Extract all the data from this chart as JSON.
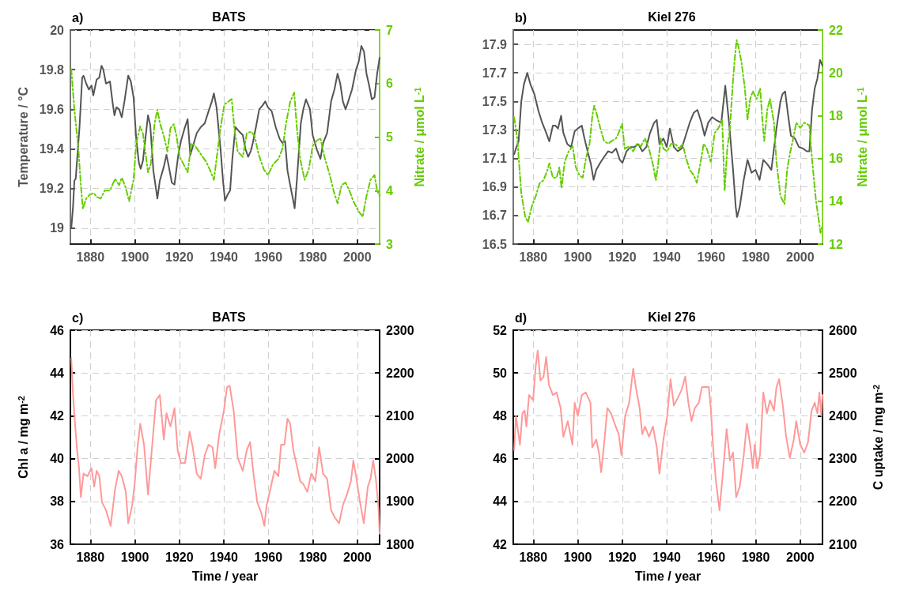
{
  "chart_data": [
    {
      "type": "line",
      "title": "BATS",
      "annotations": [
        "a)"
      ],
      "ylabel": "Temperature / °C",
      "y2label": "Nitrate / μmol L$^{-1}$",
      "xlim": [
        1871,
        2010
      ],
      "xticks": [
        1880,
        1900,
        1920,
        1940,
        1960,
        1980,
        2000
      ],
      "ylim": [
        18.92,
        20
      ],
      "yticks": [
        19,
        19.2,
        19.4,
        19.6,
        19.8,
        20
      ],
      "y2lim": [
        3,
        7
      ],
      "y2ticks": [
        3,
        4,
        5,
        6,
        7
      ],
      "grid": true,
      "series": [
        {
          "color": "#555555",
          "line_style": "solid",
          "x": [
            1871.4,
            1872.2,
            1872.8,
            1873.4,
            1875.1,
            1876.3,
            1876.9,
            1878.1,
            1879.3,
            1880.5,
            1881.3,
            1882.8,
            1884,
            1885,
            1885.8,
            1887,
            1888.8,
            1889.9,
            1890.8,
            1891.7,
            1892.9,
            1894.1,
            1895.3,
            1897,
            1898.2,
            1899.4,
            1900.6,
            1901.8,
            1902.6,
            1903.6,
            1904.7,
            1905.9,
            1906.9,
            1908.3,
            1910.1,
            1911.2,
            1913,
            1914.2,
            1915.1,
            1916.6,
            1917.8,
            1919.5,
            1920.7,
            1922.5,
            1923.7,
            1924.9,
            1926,
            1927.8,
            1929.6,
            1931.4,
            1933.1,
            1934.6,
            1935.5,
            1936.7,
            1938.5,
            1939.6,
            1940.5,
            1941.7,
            1942.8,
            1943.8,
            1945.2,
            1946.7,
            1948.5,
            1949.7,
            1950.9,
            1952.1,
            1953,
            1954.4,
            1955.9,
            1957.4,
            1958.6,
            1959.8,
            1961.5,
            1963.3,
            1965.1,
            1966.3,
            1967.5,
            1968.6,
            1970.1,
            1971,
            1971.8,
            1972.8,
            1974.6,
            1975.7,
            1976.9,
            1978.7,
            1979.9,
            1981.7,
            1983.4,
            1984.6,
            1986.4,
            1988.2,
            1989.7,
            1991.1,
            1992.3,
            1993.5,
            1994.7,
            1995.9,
            1997.6,
            1999.4,
            2000.6,
            2001.8,
            2003,
            2004.1,
            2005.3,
            2006.5,
            2007.7,
            2008.9,
            2010
          ],
          "values": [
            19.0,
            19.11,
            19.24,
            19.25,
            19.51,
            19.76,
            19.77,
            19.73,
            19.7,
            19.72,
            19.67,
            19.75,
            19.76,
            19.82,
            19.8,
            19.73,
            19.74,
            19.64,
            19.57,
            19.61,
            19.6,
            19.56,
            19.64,
            19.77,
            19.74,
            19.66,
            19.45,
            19.33,
            19.3,
            19.34,
            19.45,
            19.57,
            19.52,
            19.29,
            19.15,
            19.24,
            19.31,
            19.37,
            19.32,
            19.23,
            19.22,
            19.37,
            19.44,
            19.51,
            19.55,
            19.37,
            19.41,
            19.48,
            19.51,
            19.53,
            19.59,
            19.64,
            19.68,
            19.61,
            19.4,
            19.24,
            19.14,
            19.17,
            19.19,
            19.35,
            19.51,
            19.49,
            19.47,
            19.4,
            19.36,
            19.39,
            19.43,
            19.51,
            19.6,
            19.62,
            19.64,
            19.61,
            19.59,
            19.51,
            19.45,
            19.43,
            19.44,
            19.29,
            19.2,
            19.15,
            19.1,
            19.24,
            19.53,
            19.6,
            19.65,
            19.6,
            19.47,
            19.4,
            19.35,
            19.43,
            19.48,
            19.64,
            19.7,
            19.78,
            19.73,
            19.64,
            19.6,
            19.64,
            19.7,
            19.8,
            19.84,
            19.92,
            19.89,
            19.78,
            19.72,
            19.65,
            19.66,
            19.78,
            19.86
          ]
        },
        {
          "color": "#66cc00",
          "line_style": "dashed",
          "axis": "y2",
          "x": [
            1871.4,
            1872.8,
            1874.6,
            1875.7,
            1876.6,
            1878.1,
            1879.9,
            1881.7,
            1882.8,
            1884.6,
            1886.4,
            1888.8,
            1891.1,
            1892.9,
            1894.1,
            1895.9,
            1897.4,
            1899.4,
            1900.6,
            1902.4,
            1903.6,
            1904.7,
            1905.9,
            1907.1,
            1908.9,
            1910.1,
            1911.2,
            1913,
            1914.6,
            1916,
            1917.5,
            1918.7,
            1920.1,
            1921.9,
            1923.7,
            1925.4,
            1927.2,
            1929.6,
            1932,
            1933.7,
            1935.5,
            1936.7,
            1938.5,
            1940.2,
            1942,
            1943.5,
            1944.7,
            1946.2,
            1948.5,
            1950.3,
            1952.3,
            1953.8,
            1955.6,
            1958,
            1959.8,
            1962.1,
            1964.5,
            1966.3,
            1968,
            1969.8,
            1971.6,
            1972.8,
            1974.3,
            1976.3,
            1978.1,
            1979.9,
            1981.7,
            1983.4,
            1985.2,
            1987.6,
            1989.3,
            1991.1,
            1992.9,
            1994.7,
            1996.4,
            1998.2,
            2000.6,
            2002.4,
            2004.1,
            2005.9,
            2007.7,
            2008.9,
            2010
          ],
          "values": [
            6.27,
            5.51,
            4.78,
            4.1,
            3.66,
            3.85,
            3.93,
            3.95,
            3.88,
            3.85,
            4.0,
            4.0,
            4.22,
            4.1,
            4.24,
            4.05,
            3.8,
            4.2,
            4.88,
            5.2,
            5.07,
            4.73,
            4.34,
            4.49,
            5.27,
            5.51,
            5.27,
            5.02,
            4.73,
            5.17,
            5.24,
            5.02,
            4.63,
            4.49,
            4.34,
            4.88,
            4.83,
            4.68,
            4.54,
            4.39,
            4.2,
            4.59,
            5.17,
            5.61,
            5.66,
            5.71,
            5.17,
            4.73,
            4.63,
            5.07,
            5.1,
            5.02,
            4.68,
            4.39,
            4.29,
            4.49,
            4.59,
            4.78,
            5.27,
            5.66,
            5.83,
            5.17,
            4.59,
            4.2,
            4.39,
            4.83,
            4.93,
            4.98,
            4.63,
            4.29,
            4.0,
            3.76,
            4.1,
            4.15,
            4.0,
            3.8,
            3.61,
            3.51,
            3.9,
            4.2,
            4.29,
            4.0,
            3.9
          ]
        }
      ]
    },
    {
      "type": "line",
      "title": "Kiel 276",
      "annotations": [
        "b)"
      ],
      "y2label": "Nitrate / μmol L$^{-1}$",
      "xlim": [
        1871,
        2010
      ],
      "xticks": [
        1880,
        1900,
        1920,
        1940,
        1960,
        1980,
        2000
      ],
      "ylim": [
        16.5,
        18.0
      ],
      "yticks": [
        16.5,
        16.7,
        16.9,
        17.1,
        17.3,
        17.5,
        17.7,
        17.9
      ],
      "y2lim": [
        12,
        22
      ],
      "y2ticks": [
        12,
        14,
        16,
        18,
        20,
        22
      ],
      "grid": true,
      "series": [
        {
          "color": "#555555",
          "line_style": "solid",
          "x": [
            1871.4,
            1872.2,
            1873.4,
            1874.6,
            1875.8,
            1877.3,
            1878.7,
            1880.5,
            1882.2,
            1884,
            1885.8,
            1887.2,
            1888.8,
            1889.9,
            1891.1,
            1892.5,
            1893.5,
            1895.3,
            1897,
            1898.6,
            1900,
            1901.8,
            1903,
            1904.1,
            1905.9,
            1907.1,
            1908.3,
            1910.1,
            1911.8,
            1913.6,
            1915.4,
            1917.2,
            1918.9,
            1920.1,
            1921.9,
            1923.7,
            1925.4,
            1927.2,
            1929,
            1930.8,
            1932.5,
            1934.3,
            1935.5,
            1936.7,
            1938.5,
            1940,
            1941.4,
            1943.2,
            1945,
            1946.7,
            1948.5,
            1950.3,
            1952.1,
            1953.8,
            1955.6,
            1957,
            1958.6,
            1960.4,
            1962.1,
            1964.5,
            1966.3,
            1968,
            1969.8,
            1971,
            1971.6,
            1972.8,
            1974.6,
            1976.3,
            1978.1,
            1979.9,
            1981.7,
            1983.4,
            1985.2,
            1987,
            1988.2,
            1989.3,
            1991.1,
            1992,
            1993.2,
            1994.4,
            1995.8,
            1997.6,
            1999.4,
            2001.2,
            2002.9,
            2004.1,
            2005.3,
            2006.5,
            2007.7,
            2008.9,
            2010
          ],
          "values": [
            17.13,
            17.17,
            17.22,
            17.5,
            17.62,
            17.7,
            17.62,
            17.55,
            17.44,
            17.35,
            17.28,
            17.22,
            17.33,
            17.33,
            17.31,
            17.4,
            17.28,
            17.2,
            17.18,
            17.29,
            17.31,
            17.33,
            17.24,
            17.17,
            17.06,
            16.95,
            17.02,
            17.07,
            17.11,
            17.15,
            17.14,
            17.17,
            17.09,
            17.07,
            17.15,
            17.18,
            17.18,
            17.2,
            17.15,
            17.18,
            17.28,
            17.35,
            17.37,
            17.2,
            17.24,
            17.18,
            17.31,
            17.18,
            17.15,
            17.17,
            17.26,
            17.35,
            17.42,
            17.44,
            17.35,
            17.26,
            17.35,
            17.39,
            17.37,
            17.35,
            17.61,
            17.35,
            17.02,
            16.76,
            16.69,
            16.76,
            16.95,
            17.09,
            17.0,
            17.02,
            16.95,
            17.09,
            17.06,
            17.02,
            17.17,
            17.31,
            17.5,
            17.55,
            17.57,
            17.42,
            17.26,
            17.24,
            17.18,
            17.17,
            17.15,
            17.15,
            17.44,
            17.59,
            17.66,
            17.79,
            17.75
          ]
        },
        {
          "color": "#66cc00",
          "line_style": "dashed",
          "axis": "y2",
          "x": [
            1871.4,
            1872.8,
            1874.6,
            1876.4,
            1877.6,
            1879.3,
            1881.1,
            1882.9,
            1884.6,
            1886.4,
            1887.2,
            1888.8,
            1890.5,
            1891.7,
            1892.7,
            1894.1,
            1895.9,
            1897.7,
            1899.1,
            1900.7,
            1902.2,
            1903.6,
            1905.3,
            1906.6,
            1907.4,
            1908.3,
            1910.1,
            1911.8,
            1913.6,
            1915.4,
            1917.2,
            1918.3,
            1919.9,
            1921.1,
            1923.1,
            1924.9,
            1926.6,
            1928.4,
            1930.2,
            1932,
            1933.8,
            1935.1,
            1936.1,
            1937.3,
            1938.5,
            1940.2,
            1942,
            1943.8,
            1945.5,
            1947.1,
            1948.5,
            1950.3,
            1952.1,
            1953.5,
            1955,
            1956.6,
            1958,
            1959.8,
            1961.5,
            1963.3,
            1964.9,
            1966,
            1967.2,
            1968.4,
            1969.6,
            1970.4,
            1971.4,
            1972.2,
            1973.6,
            1975.1,
            1976.3,
            1977.5,
            1978.7,
            1980.4,
            1982,
            1982.8,
            1983.8,
            1985.2,
            1986.4,
            1988.2,
            1989.3,
            1991.1,
            1992.9,
            1994.1,
            1995.3,
            1997.1,
            1998.2,
            2000,
            2001.8,
            2004.1,
            2005.3,
            2007.1,
            2008.3,
            2009.1,
            2010
          ],
          "values": [
            17.92,
            16.94,
            14.37,
            13.26,
            13.02,
            13.75,
            14.24,
            14.86,
            14.98,
            15.47,
            15.77,
            15.1,
            15.1,
            15.59,
            14.61,
            15.84,
            16.33,
            16.57,
            15.59,
            15.22,
            15.1,
            15.96,
            16.69,
            18.04,
            18.47,
            18.16,
            17.43,
            16.82,
            16.69,
            16.82,
            16.94,
            17.18,
            17.61,
            16.45,
            16.57,
            16.33,
            16.69,
            16.57,
            16.94,
            16.45,
            15.71,
            14.98,
            15.71,
            16.94,
            16.45,
            16.33,
            16.69,
            16.69,
            16.45,
            16.69,
            16.08,
            15.47,
            15.22,
            14.86,
            15.71,
            16.69,
            16.45,
            15.84,
            17.18,
            17.43,
            17.8,
            14.49,
            16.45,
            17.43,
            19.39,
            20.49,
            21.53,
            21.23,
            20.49,
            19.27,
            17.8,
            18.78,
            19.14,
            18.78,
            19.27,
            18.04,
            16.82,
            18.29,
            18.78,
            17.67,
            15.84,
            14.24,
            13.87,
            15.47,
            16.2,
            17.06,
            17.67,
            17.43,
            17.67,
            17.55,
            15.96,
            14.0,
            13.14,
            12.53,
            12.89
          ]
        }
      ]
    },
    {
      "type": "line",
      "title": "BATS",
      "annotations": [
        "c)"
      ],
      "xlabel": "Time / year",
      "ylabel": "Chl a / mg m$^{-2}$",
      "xlim": [
        1871,
        2010
      ],
      "xticks": [
        1880,
        1900,
        1920,
        1940,
        1960,
        1980,
        2000
      ],
      "ylim": [
        36,
        46
      ],
      "yticks": [
        36,
        38,
        40,
        42,
        44,
        46
      ],
      "y2lim": [
        1800,
        2300
      ],
      "y2ticks": [
        1800,
        1900,
        2000,
        2100,
        2200,
        2300
      ],
      "grid": true,
      "series": [
        {
          "color": "#ff9999",
          "line_style": "solid",
          "x": [
            1871.4,
            1872.2,
            1873,
            1874,
            1874.9,
            1875.7,
            1876.9,
            1878.7,
            1880.5,
            1881.7,
            1882.8,
            1884,
            1885.2,
            1887,
            1889.1,
            1891.1,
            1892.7,
            1894.1,
            1895.9,
            1897,
            1898.8,
            1900,
            1901.2,
            1902.4,
            1904.1,
            1905.9,
            1907.7,
            1909.5,
            1911.2,
            1913,
            1914.2,
            1916,
            1917.8,
            1919.2,
            1920.7,
            1922.5,
            1924.6,
            1926,
            1927.8,
            1929.6,
            1931.4,
            1933.1,
            1934.9,
            1936.1,
            1937.9,
            1940,
            1941.4,
            1942.6,
            1944.4,
            1946.2,
            1948.5,
            1950.3,
            1951.8,
            1953.3,
            1955,
            1956.8,
            1958.2,
            1959.2,
            1960.9,
            1962.7,
            1964.5,
            1965.7,
            1967.2,
            1968.6,
            1969.8,
            1971.2,
            1972.8,
            1974.3,
            1975.7,
            1977.5,
            1979.3,
            1981.1,
            1982.8,
            1984.6,
            1986.4,
            1988.2,
            1990,
            1991.8,
            1993.5,
            1995.3,
            1997.1,
            1998.2,
            1999.4,
            2001.2,
            2002.9,
            2004.7,
            2005.9,
            2007.1,
            2008.3,
            2009.5,
            2010
          ],
          "values": [
            44.69,
            42.97,
            41.75,
            40.4,
            39.55,
            38.2,
            39.3,
            39.18,
            39.55,
            38.69,
            39.43,
            39.18,
            37.96,
            37.59,
            36.86,
            38.57,
            39.43,
            39.18,
            38.45,
            36.98,
            37.83,
            38.94,
            40.53,
            41.63,
            40.65,
            38.32,
            40.53,
            42.73,
            42.97,
            40.89,
            42.12,
            41.5,
            42.36,
            40.4,
            39.79,
            39.79,
            41.26,
            40.53,
            39.3,
            39.06,
            40.16,
            40.65,
            40.53,
            39.55,
            41.14,
            42.24,
            43.34,
            43.4,
            42.24,
            40.04,
            39.43,
            40.4,
            40.77,
            39.3,
            37.96,
            37.47,
            36.86,
            37.83,
            38.57,
            39.43,
            39.18,
            40.65,
            40.65,
            41.87,
            41.63,
            40.4,
            39.67,
            38.94,
            38.81,
            38.45,
            39.3,
            38.94,
            40.53,
            39.3,
            39.06,
            37.59,
            37.22,
            36.98,
            37.83,
            38.32,
            38.94,
            39.91,
            39.18,
            37.96,
            36.98,
            38.69,
            39.06,
            39.91,
            39.06,
            37.71,
            36.49
          ]
        }
      ]
    },
    {
      "type": "line",
      "title": "Kiel 276",
      "annotations": [
        "d)"
      ],
      "xlabel": "Time / year",
      "y2label": "C uptake / mg m$^{-2}$",
      "xlim": [
        1871,
        2010
      ],
      "xticks": [
        1880,
        1900,
        1920,
        1940,
        1960,
        1980,
        2000
      ],
      "ylim": [
        42,
        52
      ],
      "yticks": [
        42,
        44,
        46,
        48,
        50,
        52
      ],
      "y2lim": [
        2100,
        2600
      ],
      "y2ticks": [
        2100,
        2200,
        2300,
        2400,
        2500,
        2600
      ],
      "grid": true,
      "series": [
        {
          "color": "#ff9999",
          "line_style": "solid",
          "x": [
            1871.4,
            1872.2,
            1873,
            1874,
            1875.1,
            1876.1,
            1876.9,
            1878.1,
            1879.9,
            1881.1,
            1882,
            1883.2,
            1884.6,
            1885.8,
            1887,
            1888.8,
            1890.5,
            1892.3,
            1893.5,
            1895.5,
            1897.6,
            1898.6,
            1900,
            1901.8,
            1903.6,
            1905.7,
            1906.5,
            1908.3,
            1909.5,
            1910.5,
            1911.9,
            1913.3,
            1914.9,
            1916.6,
            1918.4,
            1919.6,
            1921.3,
            1923.1,
            1924.9,
            1926.1,
            1927.8,
            1929,
            1930.2,
            1932,
            1933.8,
            1935.5,
            1936.7,
            1938.5,
            1940.2,
            1941.7,
            1943.2,
            1945,
            1946.7,
            1948.3,
            1949.7,
            1951.1,
            1952.6,
            1954.4,
            1955.8,
            1957.4,
            1958.9,
            1959.8,
            1961,
            1962.1,
            1963.7,
            1965.1,
            1966.9,
            1968.4,
            1969.8,
            1971.2,
            1972.8,
            1974.6,
            1976,
            1977.5,
            1978.7,
            1979.5,
            1980.7,
            1981.9,
            1983.4,
            1985,
            1986.4,
            1988.2,
            1989.3,
            1990.5,
            1992.3,
            1993.5,
            1995.3,
            1997.1,
            1998.2,
            2000,
            2001.8,
            2003.5,
            2005.1,
            2006.5,
            2007.7,
            2008.6,
            2009.5,
            2010
          ],
          "values": [
            46.4,
            47.99,
            47.38,
            46.65,
            48.12,
            48.24,
            47.5,
            48.97,
            48.73,
            50.32,
            51.05,
            49.65,
            49.82,
            50.75,
            49.46,
            48.97,
            49.09,
            48.36,
            47.02,
            47.75,
            46.65,
            48.61,
            47.99,
            48.97,
            49.09,
            48.61,
            46.53,
            46.89,
            46.28,
            45.36,
            46.77,
            48.36,
            48.12,
            47.63,
            47.14,
            46.16,
            47.99,
            48.61,
            50.2,
            49.34,
            48.36,
            47.14,
            47.5,
            47.02,
            47.5,
            46.53,
            45.3,
            46.89,
            47.99,
            49.71,
            48.48,
            48.85,
            49.22,
            49.83,
            48.61,
            47.75,
            48.36,
            48.61,
            49.34,
            49.34,
            49.34,
            48.36,
            46.28,
            44.94,
            43.59,
            45.18,
            47.38,
            45.91,
            46.28,
            44.2,
            44.69,
            46.16,
            47.63,
            46.65,
            45.55,
            46.65,
            45.55,
            46.16,
            49.09,
            48.12,
            48.73,
            48.24,
            49.34,
            49.71,
            48.36,
            47.14,
            46.04,
            46.89,
            47.75,
            46.65,
            46.28,
            46.77,
            48.24,
            48.61,
            48.12,
            49.09,
            47.99,
            48.97
          ]
        }
      ]
    }
  ]
}
